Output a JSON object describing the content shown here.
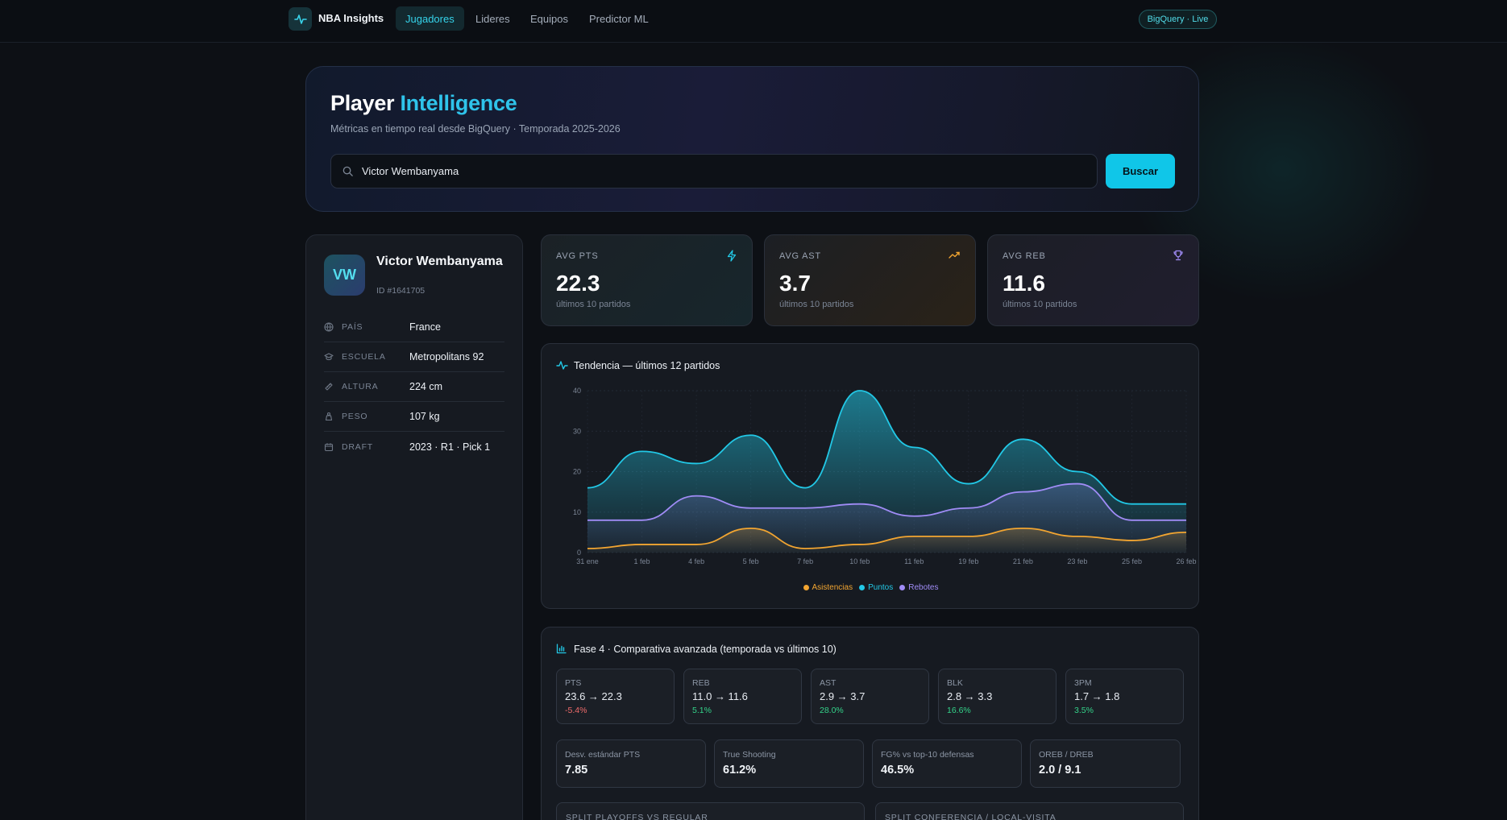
{
  "nav": {
    "brand": "NBA Insights",
    "tabs": [
      "Jugadores",
      "Lideres",
      "Equipos",
      "Predictor ML"
    ],
    "status_badge": "BigQuery · Live"
  },
  "hero": {
    "title_main": "Player",
    "title_accent": "Intelligence",
    "subtitle": "Métricas en tiempo real desde BigQuery · Temporada 2025-2026",
    "search_value": "Victor Wembanyama",
    "search_button": "Buscar"
  },
  "player": {
    "initials": "VW",
    "name": "Victor Wembanyama",
    "id": "ID #1641705",
    "info": [
      {
        "icon": "globe-icon",
        "label": "PAÍS",
        "value": "France"
      },
      {
        "icon": "graduation-cap-icon",
        "label": "ESCUELA",
        "value": "Metropolitans 92"
      },
      {
        "icon": "ruler-icon",
        "label": "ALTURA",
        "value": "224 cm"
      },
      {
        "icon": "weight-icon",
        "label": "PESO",
        "value": "107 kg"
      },
      {
        "icon": "calendar-icon",
        "label": "DRAFT",
        "value": "2023 · R1 · Pick 1"
      }
    ]
  },
  "stats": [
    {
      "label": "AVG PTS",
      "value": "22.3",
      "note": "últimos 10 partidos",
      "icon": "lightning-icon",
      "color": "#22c8e6"
    },
    {
      "label": "AVG AST",
      "value": "3.7",
      "note": "últimos 10 partidos",
      "icon": "trending-up-icon",
      "color": "#f2a531"
    },
    {
      "label": "AVG REB",
      "value": "11.6",
      "note": "últimos 10 partidos",
      "icon": "trophy-icon",
      "color": "#9f8cff"
    }
  ],
  "trend": {
    "title": "Tendencia — últimos 12 partidos"
  },
  "chart_data": {
    "type": "area",
    "categories": [
      "31 ene",
      "1 feb",
      "4 feb",
      "5 feb",
      "7 feb",
      "10 feb",
      "11 feb",
      "19 feb",
      "21 feb",
      "23 feb",
      "25 feb",
      "26 feb"
    ],
    "series": [
      {
        "name": "Asistencias",
        "color": "#f2a531",
        "values": [
          1,
          2,
          2,
          6,
          1,
          2,
          4,
          4,
          6,
          4,
          3,
          5
        ]
      },
      {
        "name": "Puntos",
        "color": "#22c8e6",
        "values": [
          16,
          25,
          22,
          29,
          16,
          40,
          26,
          17,
          28,
          20,
          12,
          12
        ]
      },
      {
        "name": "Rebotes",
        "color": "#a08cf6",
        "values": [
          8,
          8,
          14,
          11,
          11,
          12,
          9,
          11,
          15,
          17,
          8,
          8
        ]
      }
    ],
    "ylim": [
      0,
      40
    ],
    "yticks": [
      0,
      10,
      20,
      30,
      40
    ],
    "grid": true,
    "legend": "bottom-center"
  },
  "phase4": {
    "title": "Fase 4 · Comparativa avanzada (temporada vs últimos 10)",
    "metrics": [
      {
        "label": "PTS",
        "value": "23.6 → 22.3",
        "delta": "-5.4%",
        "color": "#f06b6b"
      },
      {
        "label": "REB",
        "value": "11.0 → 11.6",
        "delta": "5.1%",
        "color": "#34d38a"
      },
      {
        "label": "AST",
        "value": "2.9 → 3.7",
        "delta": "28.0%",
        "color": "#34d38a"
      },
      {
        "label": "BLK",
        "value": "2.8 → 3.3",
        "delta": "16.6%",
        "color": "#34d38a"
      },
      {
        "label": "3PM",
        "value": "1.7 → 1.8",
        "delta": "3.5%",
        "color": "#34d38a"
      }
    ],
    "advanced": [
      {
        "label": "Desv. estándar PTS",
        "value": "7.85"
      },
      {
        "label": "True Shooting",
        "value": "61.2%"
      },
      {
        "label": "FG% vs top-10 defensas",
        "value": "46.5%"
      },
      {
        "label": "OREB / DREB",
        "value": "2.0 / 9.1"
      }
    ],
    "splits": [
      "SPLIT PLAYOFFS VS REGULAR",
      "SPLIT CONFERENCIA / LOCAL-VISITA"
    ]
  }
}
